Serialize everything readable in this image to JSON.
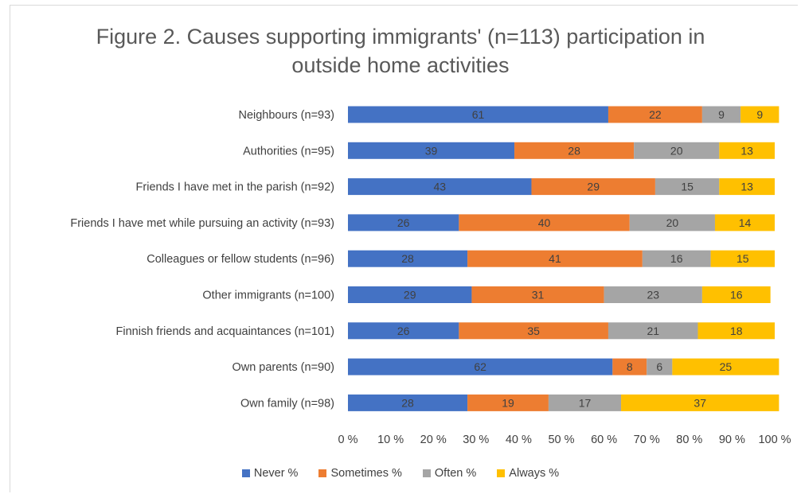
{
  "chart_data": {
    "type": "bar",
    "orientation": "horizontal",
    "stacked": "percent",
    "title": "Figure 2. Causes supporting immigrants' (n=113) participation in\noutside home activities",
    "categories": [
      "Neighbours (n=93)",
      "Authorities (n=95)",
      "Friends I have met in the parish (n=92)",
      "Friends I have met while pursuing an activity (n=93)",
      "Colleagues or fellow students (n=96)",
      "Other immigrants (n=100)",
      "Finnish friends and acquaintances (n=101)",
      "Own parents (n=90)",
      "Own family (n=98)"
    ],
    "series": [
      {
        "name": "Never %",
        "color": "#4472c4",
        "values": [
          61,
          39,
          43,
          26,
          28,
          29,
          26,
          62,
          28
        ]
      },
      {
        "name": "Sometimes %",
        "color": "#ed7d31",
        "values": [
          22,
          28,
          29,
          40,
          41,
          31,
          35,
          8,
          19
        ]
      },
      {
        "name": "Often %",
        "color": "#a5a5a5",
        "values": [
          9,
          20,
          15,
          20,
          16,
          23,
          21,
          6,
          17
        ]
      },
      {
        "name": "Always %",
        "color": "#ffc000",
        "values": [
          9,
          13,
          13,
          14,
          15,
          16,
          18,
          25,
          37
        ]
      }
    ],
    "xlim": [
      0,
      100
    ],
    "xticks": [
      "0 %",
      "10 %",
      "20 %",
      "30 %",
      "40 %",
      "50 %",
      "60 %",
      "70 %",
      "80 %",
      "90 %",
      "100 %"
    ],
    "grid": false,
    "legend_position": "bottom"
  }
}
